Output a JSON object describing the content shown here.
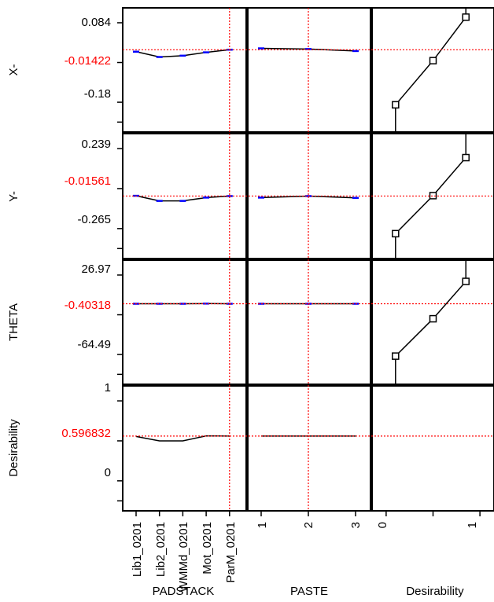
{
  "colors": {
    "current_value": "#ff0000",
    "curve": "#000000",
    "error_bar": "#0000ff",
    "frame": "#000000"
  },
  "chart_data": {
    "type": "line",
    "rows": [
      {
        "response": "X-",
        "axis_ticks": [
          "0.084",
          "-0.18"
        ],
        "current": "-0.01422",
        "ylim": [
          -0.262,
          0.112
        ]
      },
      {
        "response": "Y-",
        "axis_ticks": [
          "0.239",
          "-0.265"
        ],
        "current": "-0.01561",
        "ylim": [
          -0.43,
          0.398
        ]
      },
      {
        "response": "THETA",
        "axis_ticks": [
          "26.97",
          "-64.49"
        ],
        "current": "-0.40318",
        "ylim": [
          -99,
          53
        ]
      },
      {
        "response": "Desirability",
        "axis_ticks": [
          "1",
          "0"
        ],
        "current": "0.596832",
        "ylim": [
          -0.6,
          1.4
        ]
      }
    ],
    "factors": [
      {
        "name": "PADSTACK",
        "type": "categorical",
        "categories": [
          "Lib1_0201",
          "Lib2_0201",
          "WMMd_0201",
          "Mot_0201",
          "ParM_0201"
        ],
        "current": "ParM_0201",
        "series": [
          {
            "response": "X-",
            "values": [
              -0.02,
              -0.036,
              -0.032,
              -0.022,
              -0.014
            ]
          },
          {
            "response": "Y-",
            "values": [
              -0.014,
              -0.048,
              -0.048,
              -0.026,
              -0.016
            ]
          },
          {
            "response": "THETA",
            "values": [
              -0.4,
              -0.4,
              -0.4,
              -0.2,
              -0.4
            ]
          },
          {
            "response": "Desirability",
            "values": [
              0.59,
              0.52,
              0.52,
              0.6,
              0.597
            ]
          }
        ]
      },
      {
        "name": "PASTE",
        "type": "numeric",
        "x": [
          1,
          2,
          3
        ],
        "current": 2,
        "series": [
          {
            "response": "X-",
            "values": [
              -0.01,
              -0.012,
              -0.018
            ]
          },
          {
            "response": "Y-",
            "values": [
              -0.026,
              -0.016,
              -0.028
            ]
          },
          {
            "response": "THETA",
            "values": [
              -0.4,
              -0.4,
              -0.4
            ]
          },
          {
            "response": "Desirability",
            "values": [
              0.597,
              0.597,
              0.597
            ]
          }
        ]
      },
      {
        "name": "Desirability",
        "type": "desirability",
        "ticks": [
          "0",
          "1"
        ],
        "xlim": [
          -0.15,
          1.15
        ],
        "series": [
          {
            "response": "X-",
            "points": [
              [
                0.1,
                -0.18
              ],
              [
                0.5,
                -0.047
              ],
              [
                0.85,
                0.084
              ]
            ]
          },
          {
            "response": "Y-",
            "points": [
              [
                0.1,
                -0.265
              ],
              [
                0.5,
                -0.013
              ],
              [
                0.85,
                0.239
              ]
            ]
          },
          {
            "response": "THETA",
            "points": [
              [
                0.1,
                -64.49
              ],
              [
                0.5,
                -18.76
              ],
              [
                0.85,
                26.97
              ]
            ]
          }
        ]
      }
    ]
  }
}
